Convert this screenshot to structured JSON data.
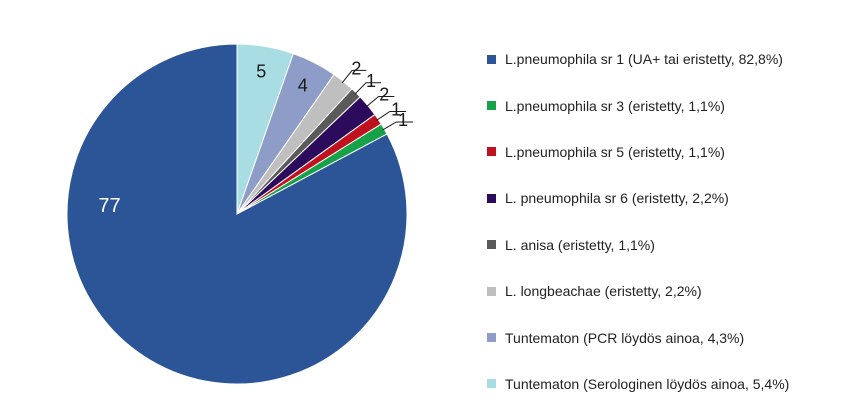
{
  "chart_data": {
    "type": "pie",
    "title": "",
    "categories": [
      "L.pneumophila sr 1 (UA+ tai eristetty, 82,8%)",
      "L.pneumophila sr 3 (eristetty, 1,1%)",
      "L.pneumophila sr 5 (eristetty, 1,1%)",
      "L. pneumophila sr 6 (eristetty, 2,2%)",
      "L. anisa (eristetty, 1,1%)",
      "L. longbeachae (eristetty, 2,2%)",
      "Tuntematon (PCR löydös ainoa, 4,3%)",
      "Tuntematon (Serologinen löydös ainoa, 5,4%)"
    ],
    "values": [
      77,
      1,
      1,
      2,
      1,
      2,
      4,
      5
    ],
    "data_labels": [
      "77",
      "1",
      "1",
      "2",
      "1",
      "2",
      "4",
      "5"
    ],
    "colors": [
      "#2B5597",
      "#17A24A",
      "#C0111F",
      "#2C0B5C",
      "#5A5A5A",
      "#BFBFBF",
      "#8E9DC8",
      "#A9DDE4"
    ],
    "start": "12 o'clock",
    "direction": "clockwise",
    "legend_position": "right"
  }
}
